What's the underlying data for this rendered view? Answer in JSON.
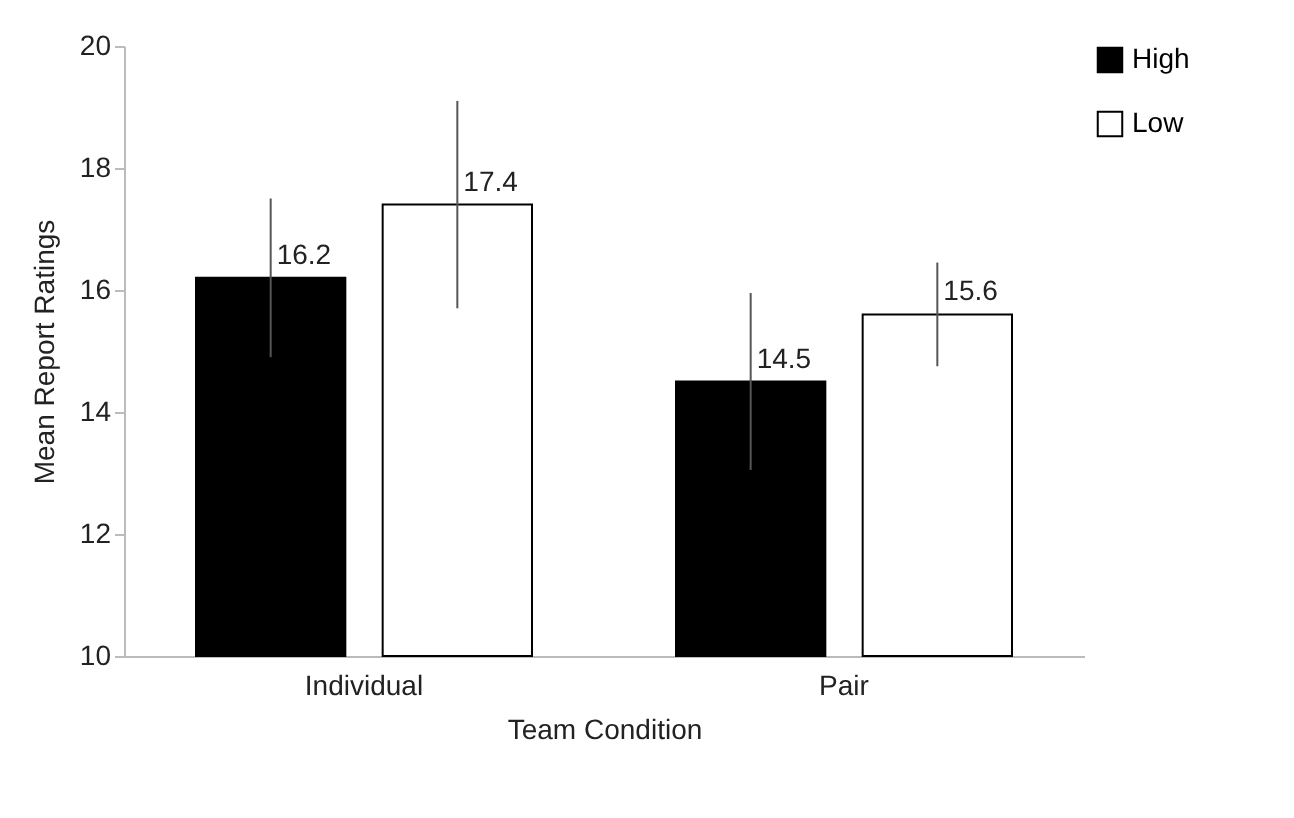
{
  "chart_data": {
    "type": "bar",
    "xlabel": "Team Condition",
    "ylabel": "Mean Report Ratings",
    "categories": [
      "Individual",
      "Pair"
    ],
    "series": [
      {
        "name": "High",
        "color": "#000000",
        "values": [
          16.2,
          14.5
        ],
        "errors": [
          1.3,
          1.45
        ]
      },
      {
        "name": "Low",
        "color": "#ffffff",
        "values": [
          17.4,
          15.6
        ],
        "errors": [
          1.7,
          0.85
        ]
      }
    ],
    "ylim": [
      10,
      20
    ],
    "yticks": [
      10,
      12,
      14,
      16,
      18,
      20
    ],
    "data_labels": true,
    "grid": false,
    "legend": "right"
  }
}
